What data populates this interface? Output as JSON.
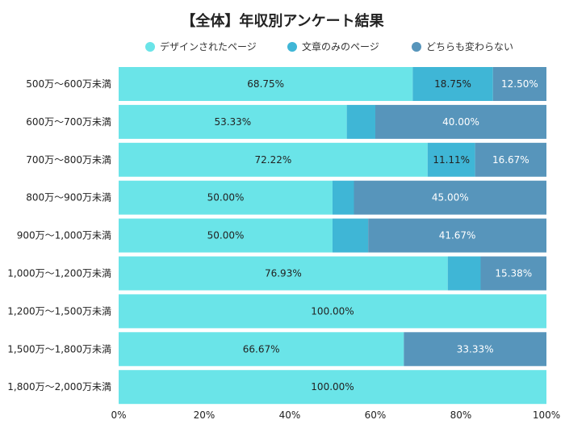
{
  "chart_data": {
    "type": "bar",
    "orientation": "horizontal",
    "stacked": true,
    "title": "【全体】年収別アンケート結果",
    "legend_position": "top",
    "grid": false,
    "xlim": [
      0,
      100
    ],
    "x_ticks": [
      "0%",
      "20%",
      "40%",
      "60%",
      "80%",
      "100%"
    ],
    "categories": [
      "500万〜600万未満",
      "600万〜700万未満",
      "700万〜800万未満",
      "800万〜900万未満",
      "900万〜1,000万未満",
      "1,000万〜1,200万未満",
      "1,200万〜1,500万未満",
      "1,500万〜1,800万未満",
      "1,800万〜2,000万未満"
    ],
    "series": [
      {
        "name": "デザインされたページ",
        "color": "#6ae4e8",
        "label_color": "#222222",
        "values": [
          68.75,
          53.33,
          72.22,
          50.0,
          50.0,
          76.93,
          100.0,
          66.67,
          100.0
        ],
        "labels": [
          "68.75%",
          "53.33%",
          "72.22%",
          "50.00%",
          "50.00%",
          "76.93%",
          "100.00%",
          "66.67%",
          "100.00%"
        ]
      },
      {
        "name": "文章のみのページ",
        "color": "#3fb6d6",
        "label_color": "#222222",
        "values": [
          18.75,
          6.67,
          11.11,
          5.0,
          8.33,
          7.69,
          0,
          0,
          0
        ],
        "labels": [
          "18.75%",
          "",
          "11.11%",
          "",
          "",
          "",
          "",
          "",
          ""
        ]
      },
      {
        "name": "どちらも変わらない",
        "color": "#5795bb",
        "label_color": "#ffffff",
        "values": [
          12.5,
          40.0,
          16.67,
          45.0,
          41.67,
          15.38,
          0,
          33.33,
          0
        ],
        "labels": [
          "12.50%",
          "40.00%",
          "16.67%",
          "45.00%",
          "41.67%",
          "15.38%",
          "",
          "33.33%",
          ""
        ]
      }
    ]
  }
}
